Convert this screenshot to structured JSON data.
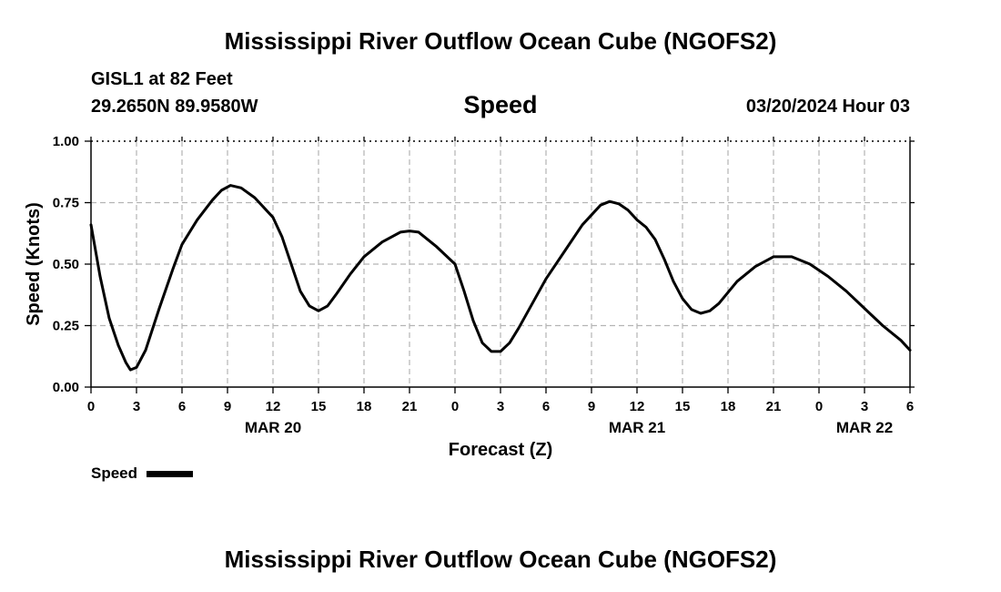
{
  "header": {
    "title": "Mississippi River Outflow Ocean Cube (NGOFS2)",
    "station": "GISL1 at 82 Feet",
    "coords": "29.2650N  89.9580W",
    "subtitle": "Speed",
    "datetime": "03/20/2024 Hour 03"
  },
  "footer": {
    "title": "Mississippi River Outflow Ocean Cube (NGOFS2)"
  },
  "chart_data": {
    "type": "line",
    "title": "Speed",
    "xlabel": "Forecast (Z)",
    "ylabel": "Speed (Knots)",
    "xlim": [
      0,
      54
    ],
    "ylim": [
      0,
      1
    ],
    "grid": true,
    "legend": "bottom-left",
    "x_ticks": [
      0,
      3,
      6,
      9,
      12,
      15,
      18,
      21,
      24,
      27,
      30,
      33,
      36,
      39,
      42,
      45,
      48,
      51,
      54
    ],
    "x_tick_labels": [
      "0",
      "3",
      "6",
      "9",
      "12",
      "15",
      "18",
      "21",
      "0",
      "3",
      "6",
      "9",
      "12",
      "15",
      "18",
      "21",
      "0",
      "3",
      "6"
    ],
    "y_ticks": [
      0,
      0.25,
      0.5,
      0.75,
      1
    ],
    "y_tick_labels": [
      "0.00",
      "0.25",
      "0.50",
      "0.75",
      "1.00"
    ],
    "date_labels": [
      {
        "x": 12,
        "text": "MAR 20"
      },
      {
        "x": 36,
        "text": "MAR 21"
      },
      {
        "x": 51,
        "text": "MAR 22"
      }
    ],
    "series": [
      {
        "name": "Speed",
        "color": "#000000",
        "x": [
          0,
          0.6,
          1.2,
          1.8,
          2.3,
          2.6,
          3.0,
          3.6,
          4.5,
          5.4,
          6.0,
          7.0,
          8.0,
          8.6,
          9.2,
          9.9,
          10.8,
          12.0,
          12.6,
          13.2,
          13.8,
          14.4,
          15.0,
          15.6,
          16.2,
          17.1,
          18.0,
          19.2,
          20.4,
          21.0,
          21.6,
          22.8,
          24.0,
          24.6,
          25.2,
          25.8,
          26.4,
          27.0,
          27.6,
          28.2,
          29.1,
          30.0,
          31.2,
          32.4,
          33.6,
          34.2,
          34.8,
          35.4,
          36.0,
          36.6,
          37.2,
          37.8,
          38.4,
          39.0,
          39.6,
          40.2,
          40.8,
          41.4,
          42.6,
          43.8,
          45.0,
          46.2,
          47.4,
          48.6,
          49.8,
          51.0,
          52.2,
          53.4,
          54.0
        ],
        "y": [
          0.66,
          0.45,
          0.28,
          0.17,
          0.1,
          0.07,
          0.08,
          0.15,
          0.32,
          0.48,
          0.58,
          0.68,
          0.76,
          0.8,
          0.82,
          0.81,
          0.77,
          0.69,
          0.61,
          0.5,
          0.39,
          0.33,
          0.31,
          0.33,
          0.38,
          0.46,
          0.53,
          0.59,
          0.63,
          0.635,
          0.63,
          0.57,
          0.5,
          0.39,
          0.27,
          0.18,
          0.145,
          0.145,
          0.18,
          0.24,
          0.34,
          0.44,
          0.55,
          0.66,
          0.74,
          0.755,
          0.745,
          0.72,
          0.68,
          0.65,
          0.6,
          0.52,
          0.43,
          0.36,
          0.315,
          0.3,
          0.31,
          0.34,
          0.43,
          0.49,
          0.53,
          0.53,
          0.5,
          0.45,
          0.39,
          0.32,
          0.25,
          0.19,
          0.15
        ]
      }
    ]
  }
}
